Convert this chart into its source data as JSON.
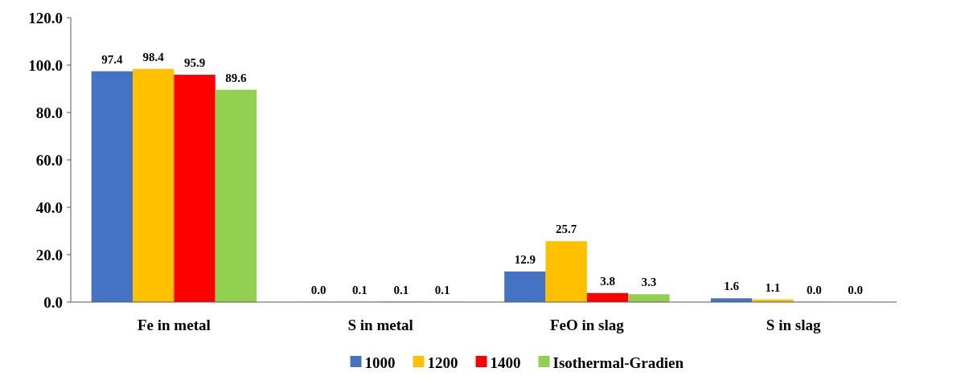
{
  "chart_data": {
    "type": "bar",
    "categories": [
      "Fe in metal",
      "S in metal",
      "FeO in slag",
      "S in slag"
    ],
    "series": [
      {
        "name": "1000",
        "color": "#4472c4",
        "values": [
          97.4,
          0.04,
          12.9,
          1.6
        ],
        "value_labels": [
          "97.4",
          "0.0",
          "12.9",
          "1.6"
        ]
      },
      {
        "name": "1200",
        "color": "#ffc000",
        "values": [
          98.4,
          0.1,
          25.7,
          1.1
        ],
        "value_labels": [
          "98.4",
          "0.1",
          "25.7",
          "1.1"
        ]
      },
      {
        "name": "1400",
        "color": "#ff0000",
        "values": [
          95.9,
          0.1,
          3.8,
          0.04
        ],
        "value_labels": [
          "95.9",
          "0.1",
          "3.8",
          "0.0"
        ]
      },
      {
        "name": "Isothermal-Gradien",
        "color": "#92d050",
        "values": [
          89.6,
          0.1,
          3.3,
          0.04
        ],
        "value_labels": [
          "89.6",
          "0.1",
          "3.3",
          "0.0"
        ]
      }
    ],
    "ylim": [
      0,
      120
    ],
    "yticks": [
      {
        "value": 0,
        "label": "0.0"
      },
      {
        "value": 20,
        "label": "20.0"
      },
      {
        "value": 40,
        "label": "40.0"
      },
      {
        "value": 60,
        "label": "60.0"
      },
      {
        "value": 80,
        "label": "80.0"
      },
      {
        "value": 100,
        "label": "100.0"
      },
      {
        "value": 120,
        "label": "120.0"
      }
    ],
    "legend": "bottom",
    "grid": false
  }
}
